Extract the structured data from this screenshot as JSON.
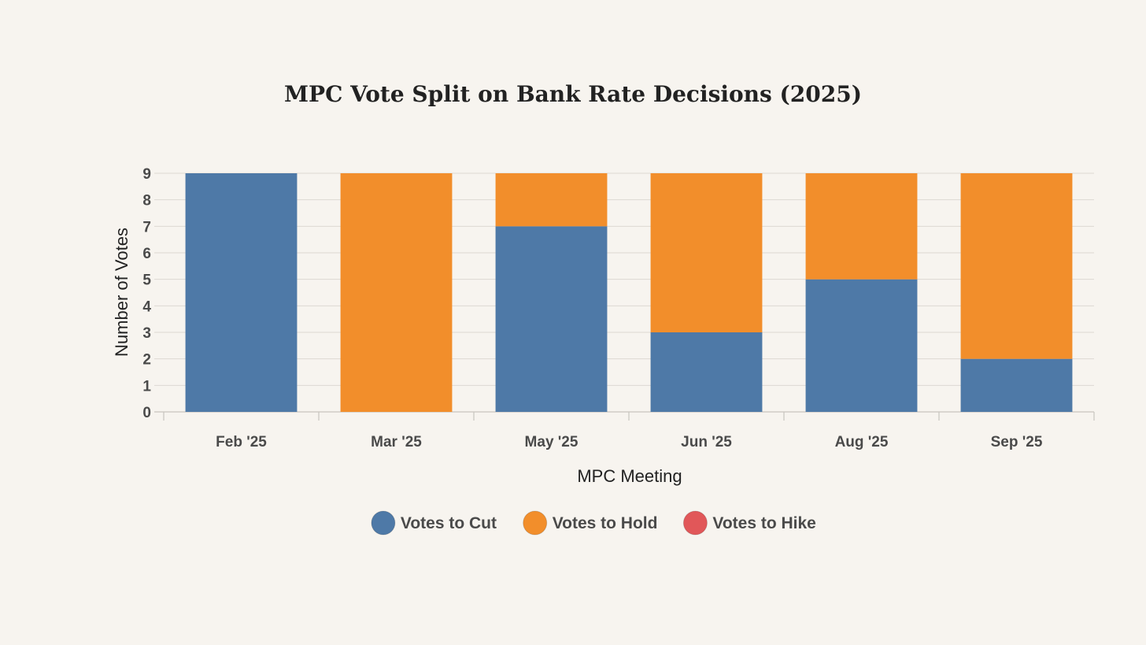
{
  "chart_data": {
    "type": "bar",
    "stacked": true,
    "title": "MPC Vote Split on Bank Rate Decisions (2025)",
    "xlabel": "MPC Meeting",
    "ylabel": "Number of Votes",
    "ylim": [
      0,
      9
    ],
    "yticks": [
      0,
      1,
      2,
      3,
      4,
      5,
      6,
      7,
      8,
      9
    ],
    "categories": [
      "Feb '25",
      "Mar '25",
      "May '25",
      "Jun '25",
      "Aug '25",
      "Sep '25"
    ],
    "series": [
      {
        "name": "Votes to Cut",
        "color": "#4e79a7",
        "values": [
          9,
          0,
          7,
          3,
          5,
          2
        ]
      },
      {
        "name": "Votes to Hold",
        "color": "#f28e2b",
        "values": [
          0,
          9,
          2,
          6,
          4,
          7
        ]
      },
      {
        "name": "Votes to Hike",
        "color": "#e15759",
        "values": [
          0,
          0,
          0,
          0,
          0,
          0
        ]
      }
    ],
    "legend_position": "bottom-center",
    "grid": true
  }
}
